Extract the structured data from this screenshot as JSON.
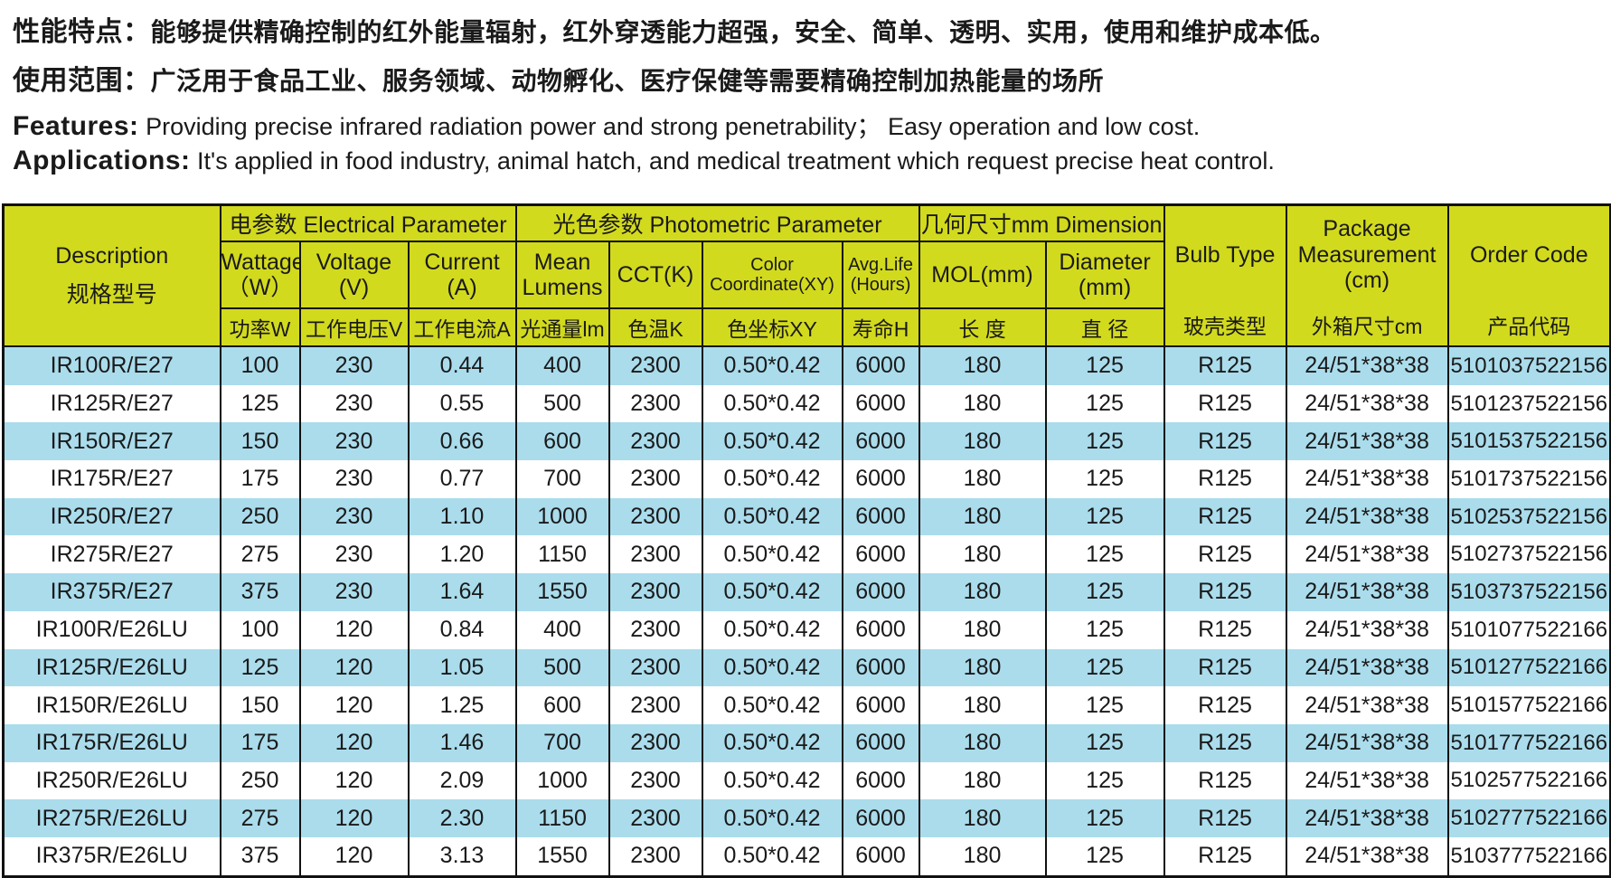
{
  "intro": {
    "line1_label": "性能特点：",
    "line1_text": "能够提供精确控制的红外能量辐射，红外穿透能力超强，安全、简单、透明、实用，使用和维护成本低。",
    "line2_label": "使用范围：",
    "line2_text": "广泛用于食品工业、服务领域、动物孵化、医疗保健等需要精确控制加热能量的场所",
    "line3_label": "Features:",
    "line3_text": "Providing precise infrared radiation power and strong penetrability；  Easy operation and low cost.",
    "line4_label": "Applications:",
    "line4_text": "It's applied in food industry, animal hatch, and medical treatment which request precise heat control."
  },
  "table": {
    "groups": {
      "electrical": "电参数  Electrical Parameter",
      "photometric": "光色参数  Photometric Parameter",
      "dimension": "几何尺寸mm  Dimension"
    },
    "columns": {
      "description": {
        "en": "Description",
        "cn": "规格型号"
      },
      "wattage": {
        "en": "Wattage",
        "unit": "（W）",
        "cn": "功率W"
      },
      "voltage": {
        "en": "Voltage",
        "unit": "(V)",
        "cn": "工作电压V"
      },
      "current": {
        "en": "Current",
        "unit": "(A)",
        "cn": "工作电流A"
      },
      "lumens": {
        "en": "Mean Lumens",
        "cn": "光通量lm"
      },
      "cct": {
        "en": "CCT(K)",
        "cn": "色温K"
      },
      "coord": {
        "en": "Color Coordinate(XY)",
        "cn": "色坐标XY"
      },
      "life": {
        "en": "Avg.Life (Hours)",
        "cn": "寿命H"
      },
      "mol": {
        "en": "MOL(mm)",
        "cn": "长 度"
      },
      "diameter": {
        "en": "Diameter (mm)",
        "cn": "直 径"
      },
      "bulb": {
        "en": "Bulb Type",
        "cn": "玻壳类型"
      },
      "package": {
        "en": "Package Measurement (cm)",
        "cn": "外箱尺寸cm"
      },
      "order": {
        "en": "Order Code",
        "cn": "产品代码"
      }
    },
    "column_keys": [
      "description",
      "wattage",
      "voltage",
      "current",
      "lumens",
      "cct",
      "coord",
      "life",
      "mol",
      "diameter",
      "bulb",
      "package",
      "order"
    ],
    "rows": [
      [
        "IR100R/E27",
        "100",
        "230",
        "0.44",
        "400",
        "2300",
        "0.50*0.42",
        "6000",
        "180",
        "125",
        "R125",
        "24/51*38*38",
        "5101037522156"
      ],
      [
        "IR125R/E27",
        "125",
        "230",
        "0.55",
        "500",
        "2300",
        "0.50*0.42",
        "6000",
        "180",
        "125",
        "R125",
        "24/51*38*38",
        "5101237522156"
      ],
      [
        "IR150R/E27",
        "150",
        "230",
        "0.66",
        "600",
        "2300",
        "0.50*0.42",
        "6000",
        "180",
        "125",
        "R125",
        "24/51*38*38",
        "5101537522156"
      ],
      [
        "IR175R/E27",
        "175",
        "230",
        "0.77",
        "700",
        "2300",
        "0.50*0.42",
        "6000",
        "180",
        "125",
        "R125",
        "24/51*38*38",
        "5101737522156"
      ],
      [
        "IR250R/E27",
        "250",
        "230",
        "1.10",
        "1000",
        "2300",
        "0.50*0.42",
        "6000",
        "180",
        "125",
        "R125",
        "24/51*38*38",
        "5102537522156"
      ],
      [
        "IR275R/E27",
        "275",
        "230",
        "1.20",
        "1150",
        "2300",
        "0.50*0.42",
        "6000",
        "180",
        "125",
        "R125",
        "24/51*38*38",
        "5102737522156"
      ],
      [
        "IR375R/E27",
        "375",
        "230",
        "1.64",
        "1550",
        "2300",
        "0.50*0.42",
        "6000",
        "180",
        "125",
        "R125",
        "24/51*38*38",
        "5103737522156"
      ],
      [
        "IR100R/E26LU",
        "100",
        "120",
        "0.84",
        "400",
        "2300",
        "0.50*0.42",
        "6000",
        "180",
        "125",
        "R125",
        "24/51*38*38",
        "5101077522166"
      ],
      [
        "IR125R/E26LU",
        "125",
        "120",
        "1.05",
        "500",
        "2300",
        "0.50*0.42",
        "6000",
        "180",
        "125",
        "R125",
        "24/51*38*38",
        "5101277522166"
      ],
      [
        "IR150R/E26LU",
        "150",
        "120",
        "1.25",
        "600",
        "2300",
        "0.50*0.42",
        "6000",
        "180",
        "125",
        "R125",
        "24/51*38*38",
        "5101577522166"
      ],
      [
        "IR175R/E26LU",
        "175",
        "120",
        "1.46",
        "700",
        "2300",
        "0.50*0.42",
        "6000",
        "180",
        "125",
        "R125",
        "24/51*38*38",
        "5101777522166"
      ],
      [
        "IR250R/E26LU",
        "250",
        "120",
        "2.09",
        "1000",
        "2300",
        "0.50*0.42",
        "6000",
        "180",
        "125",
        "R125",
        "24/51*38*38",
        "5102577522166"
      ],
      [
        "IR275R/E26LU",
        "275",
        "120",
        "2.30",
        "1150",
        "2300",
        "0.50*0.42",
        "6000",
        "180",
        "125",
        "R125",
        "24/51*38*38",
        "5102777522166"
      ],
      [
        "IR375R/E26LU",
        "375",
        "120",
        "3.13",
        "1550",
        "2300",
        "0.50*0.42",
        "6000",
        "180",
        "125",
        "R125",
        "24/51*38*38",
        "5103777522166"
      ]
    ]
  },
  "colors": {
    "header_bg": "#d2da1d",
    "row_alt_bg": "#aadcec",
    "border": "#111111"
  }
}
